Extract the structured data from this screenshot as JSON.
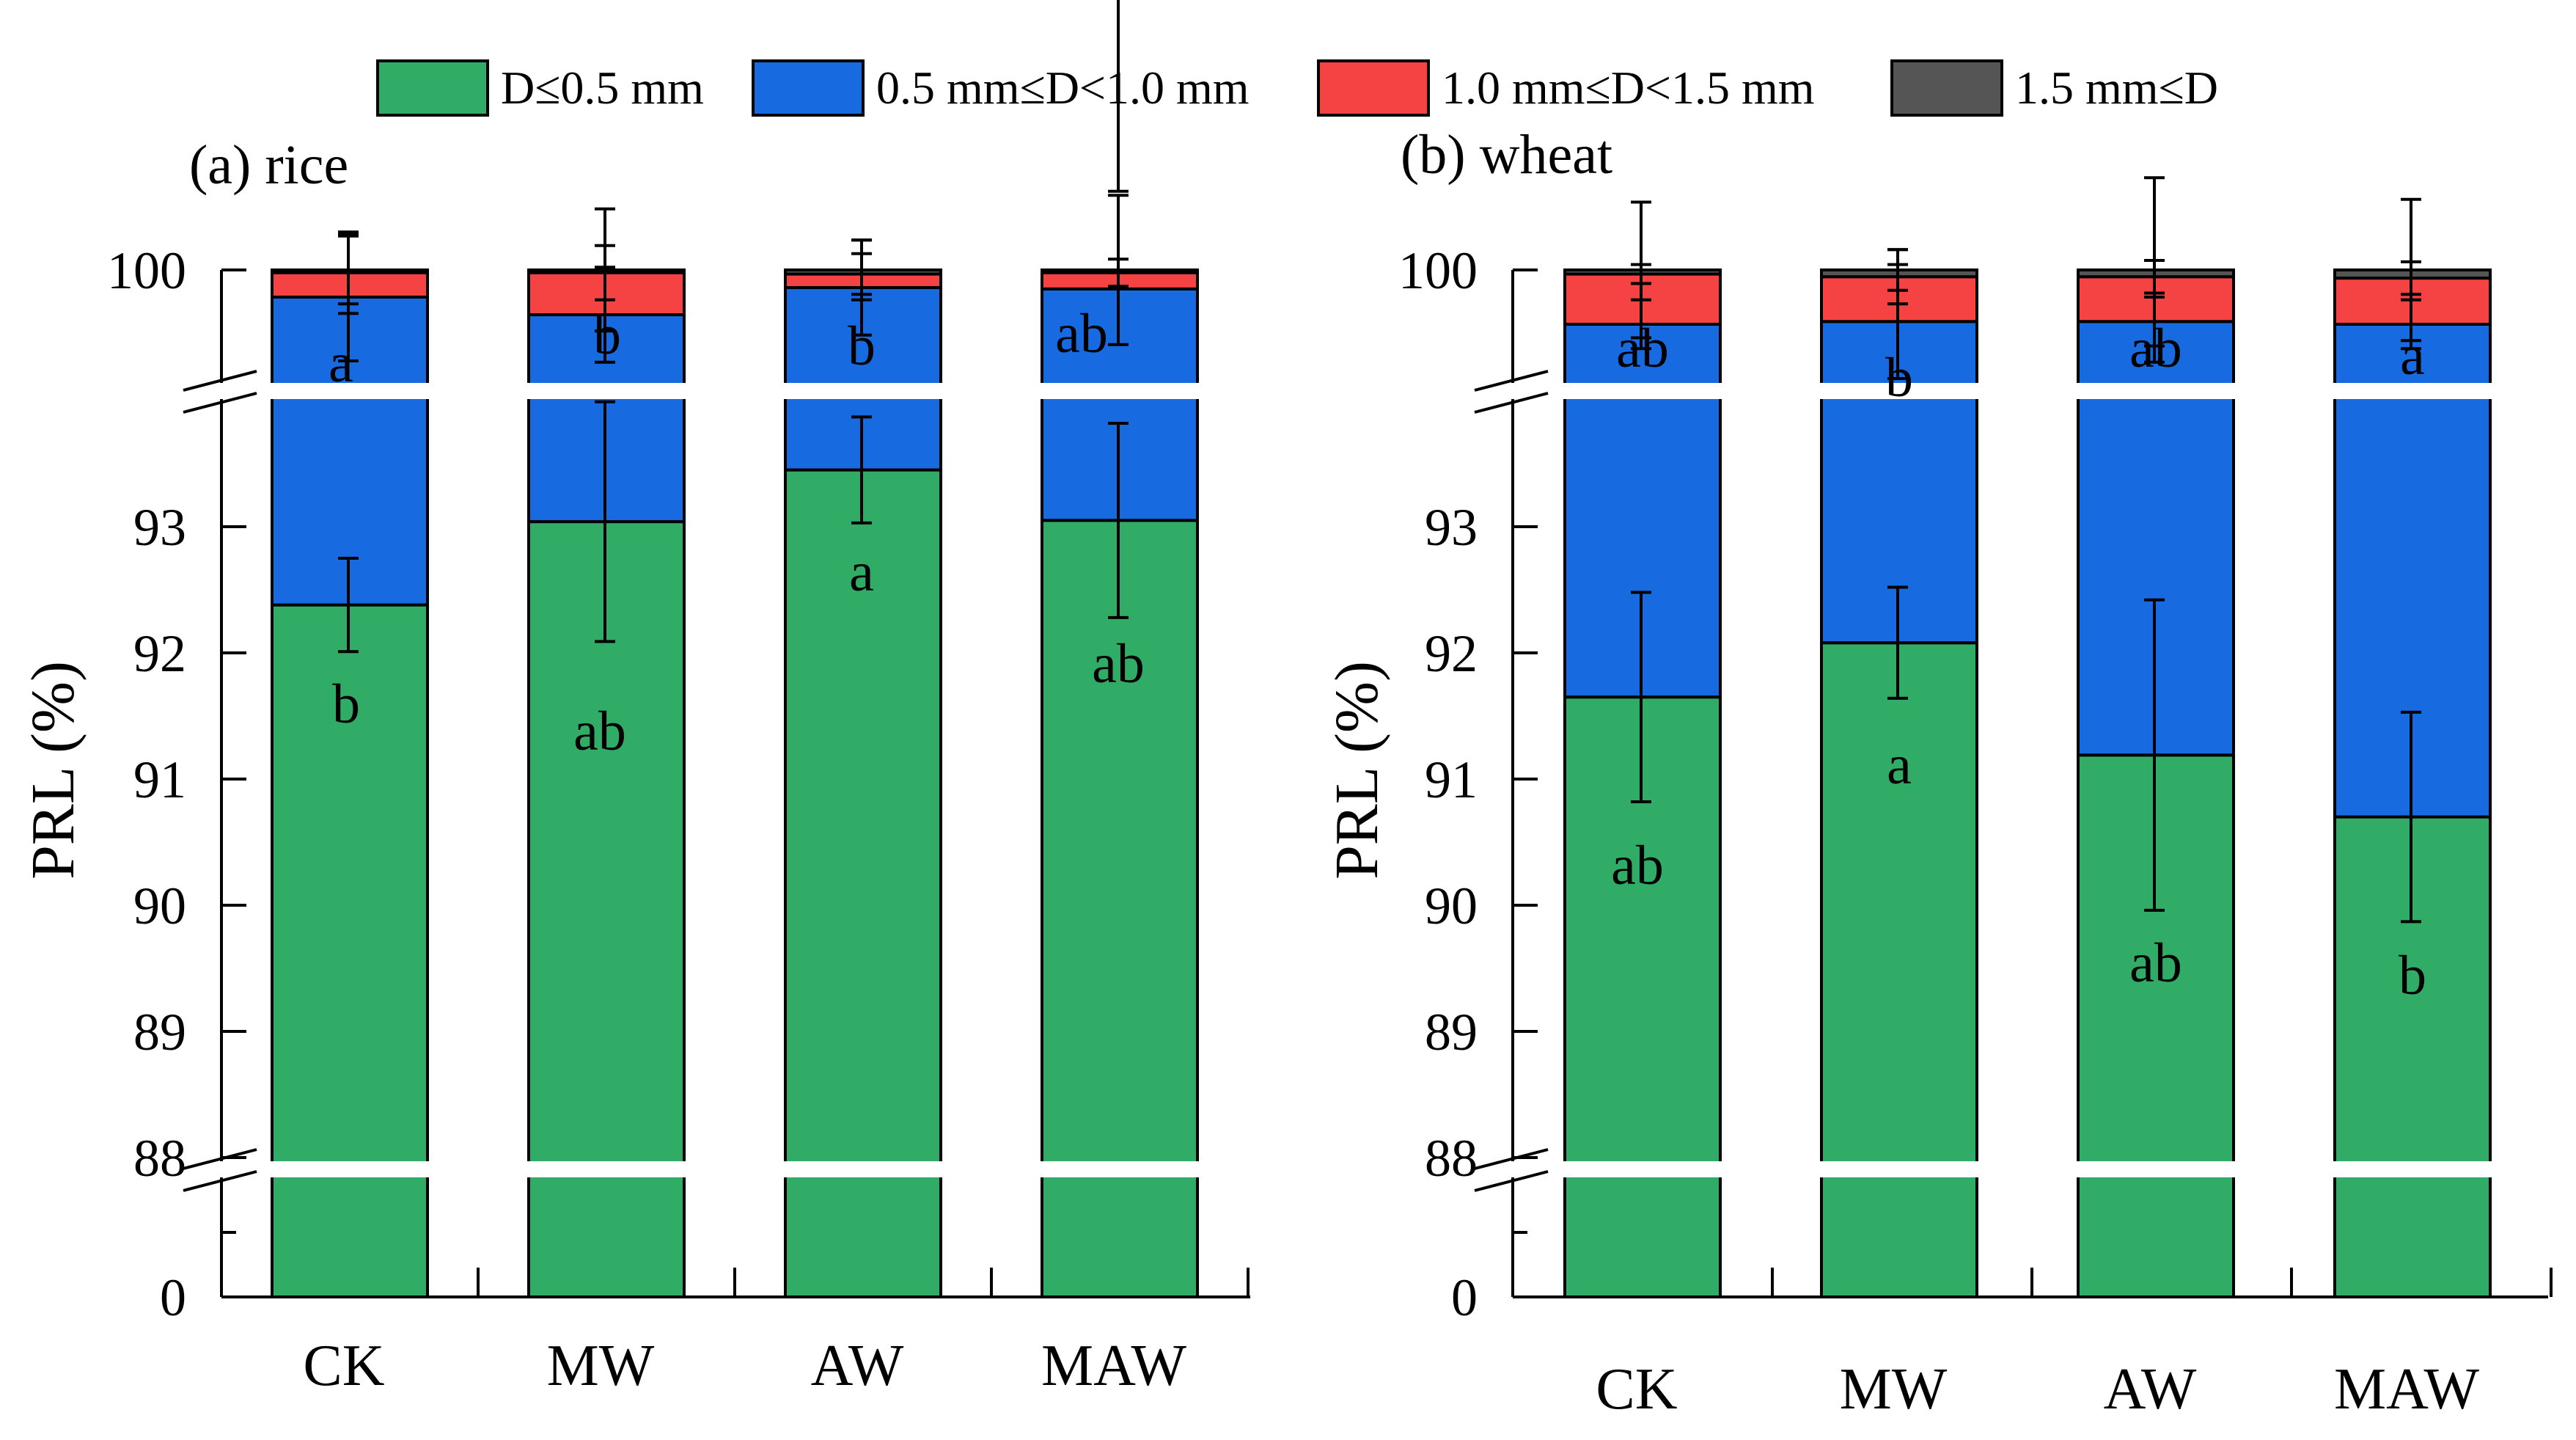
{
  "chart_data": {
    "type": "bar",
    "stacked": true,
    "broken_y_axis": true,
    "legend": {
      "placement": "top",
      "entries": [
        {
          "label": "D≤0.5 mm",
          "color": "#31ac67"
        },
        {
          "label": "0.5 mm≤D<1.0 mm",
          "color": "#186ae0"
        },
        {
          "label": "1.0 mm≤D<1.5 mm",
          "color": "#f54242"
        },
        {
          "label": "1.5 mm≤D",
          "color": "#555555"
        }
      ]
    },
    "ylabel": "PRL (%)",
    "yticks": [
      "0",
      "88",
      "89",
      "90",
      "91",
      "92",
      "93",
      "100"
    ],
    "categories": [
      "CK",
      "MW",
      "AW",
      "MAW"
    ],
    "panels": [
      {
        "title": "(a) rice",
        "series": [
          {
            "name": "D≤0.5 mm",
            "values": [
              92.38,
              93.04,
              93.45,
              93.05
            ],
            "errors": [
              0.37,
              0.95,
              0.42,
              0.77
            ],
            "labels": [
              "b",
              "ab",
              "a",
              "ab"
            ]
          },
          {
            "name": "0.5 mm≤D<1.0 mm",
            "values": [
              99.8,
              99.67,
              99.87,
              99.86
            ],
            "errors": [
              0.47,
              0.35,
              0.35,
              0.72
            ],
            "labels": [
              "a",
              "b",
              "b",
              "ab"
            ]
          },
          {
            "name": "1.0 mm≤D<1.5 mm",
            "values": [
              99.98,
              99.98,
              99.97,
              99.98
            ],
            "errors": [
              0.3,
              0.2,
              0.15,
              0.1
            ],
            "labels": []
          },
          {
            "name": "1.5 mm≤D",
            "values": [
              100,
              100,
              100,
              100
            ],
            "errors": [
              0.25,
              0.45,
              0.22,
              0.55
            ],
            "labels": []
          }
        ]
      },
      {
        "title": "(b) wheat",
        "series": [
          {
            "name": "D≤0.5 mm",
            "values": [
              91.65,
              92.08,
              91.19,
              90.7
            ],
            "errors": [
              0.83,
              0.44,
              1.23,
              0.83
            ],
            "labels": [
              "ab",
              "a",
              "ab",
              "b"
            ]
          },
          {
            "name": "0.5 mm≤D<1.0 mm",
            "values": [
              99.6,
              99.62,
              99.62,
              99.6
            ],
            "errors": [
              0.18,
              0.42,
              0.18,
              0.18
            ],
            "labels": [
              "ab",
              "b",
              "ab",
              "a"
            ]
          },
          {
            "name": "1.0 mm≤D<1.5 mm",
            "values": [
              99.97,
              99.95,
              99.95,
              99.94
            ],
            "errors": [
              0.07,
              0.2,
              0.12,
              0.12
            ],
            "labels": []
          },
          {
            "name": "1.5 mm≤D",
            "values": [
              100,
              100,
              100,
              100
            ],
            "errors": [
              0.5,
              0.15,
              0.68,
              0.52
            ],
            "labels": []
          }
        ]
      }
    ]
  }
}
